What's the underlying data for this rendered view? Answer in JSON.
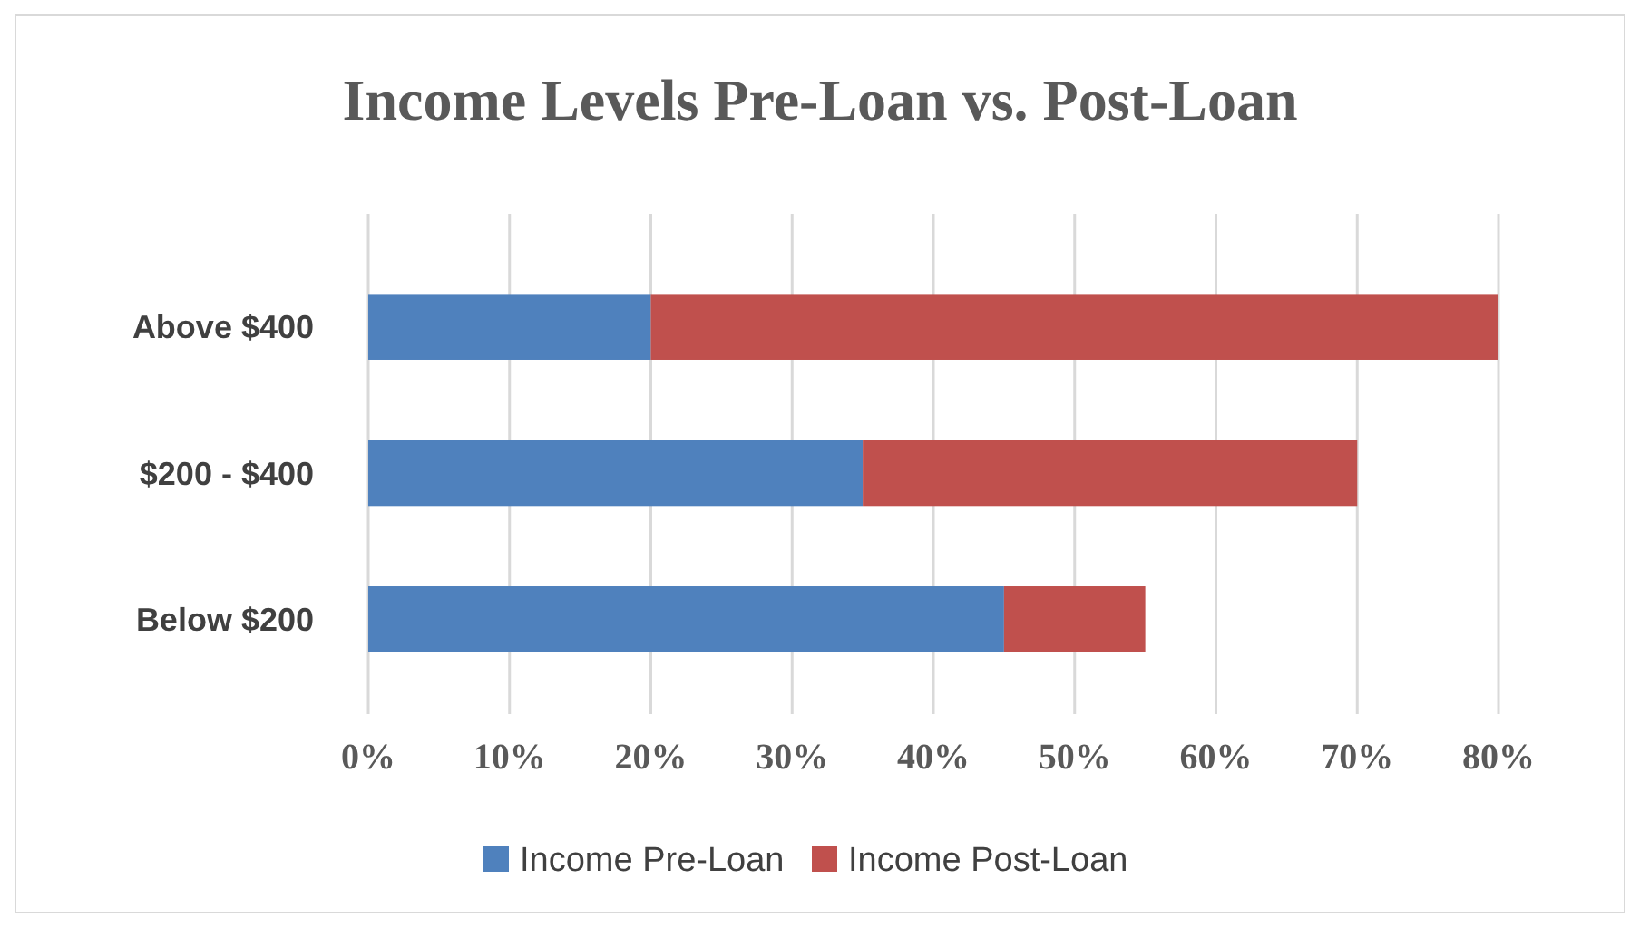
{
  "chart_data": {
    "type": "bar",
    "title": "Income Levels Pre-Loan vs. Post-Loan",
    "orientation": "horizontal",
    "stacked": true,
    "categories": [
      "Above $400",
      "$200 - $400",
      "Below $200"
    ],
    "series": [
      {
        "name": "Income Pre-Loan",
        "color": "#4f81bd",
        "values": [
          20,
          35,
          45
        ]
      },
      {
        "name": "Income Post-Loan",
        "color": "#c0504d",
        "values": [
          60,
          35,
          10
        ]
      }
    ],
    "xlim": [
      0,
      80
    ],
    "xticks": [
      {
        "value": 0,
        "label": "0%"
      },
      {
        "value": 10,
        "label": "10%"
      },
      {
        "value": 20,
        "label": "20%"
      },
      {
        "value": 30,
        "label": "30%"
      },
      {
        "value": 40,
        "label": "40%"
      },
      {
        "value": 50,
        "label": "50%"
      },
      {
        "value": 60,
        "label": "60%"
      },
      {
        "value": 70,
        "label": "70%"
      },
      {
        "value": 80,
        "label": "80%"
      }
    ],
    "grid": "x",
    "legend": "bottom"
  }
}
